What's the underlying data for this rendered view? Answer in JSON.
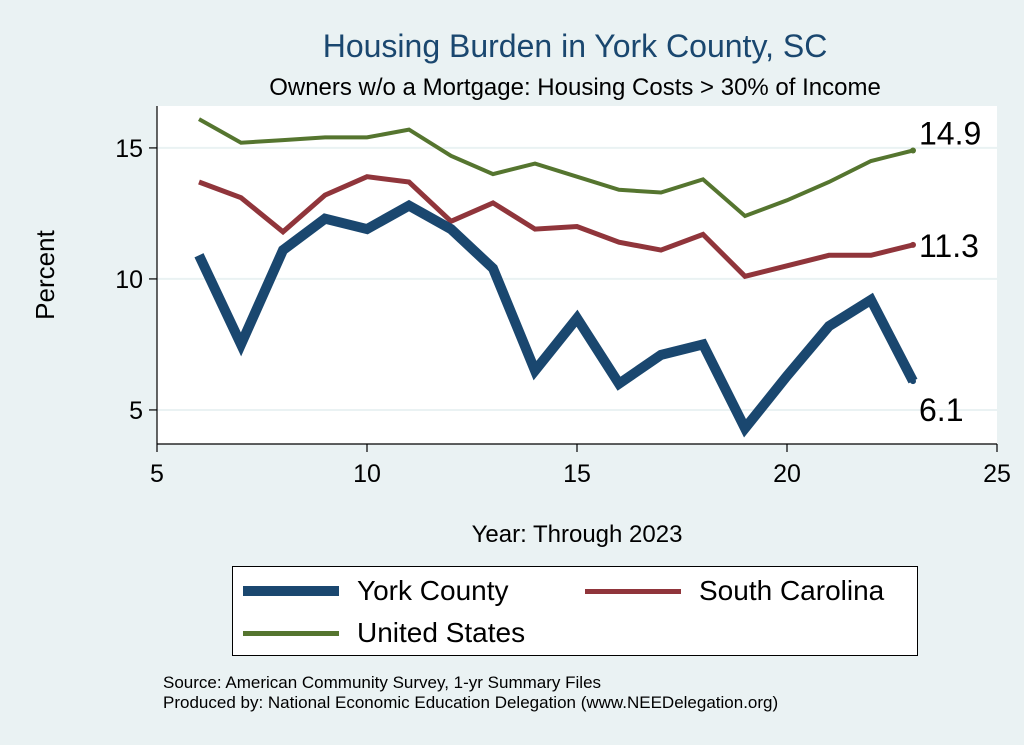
{
  "title": "Housing Burden in York County, SC",
  "subtitle": "Owners w/o a Mortgage: Housing Costs > 30% of Income",
  "chart_data": {
    "type": "line",
    "xlabel": "Year: Through 2023",
    "ylabel": "Percent",
    "xlim": [
      5,
      25
    ],
    "ylim": [
      3.7,
      16.6
    ],
    "xticks": [
      5,
      10,
      15,
      20,
      25
    ],
    "yticks": [
      5,
      10,
      15
    ],
    "grid": true,
    "x": [
      6,
      7,
      8,
      9,
      10,
      11,
      12,
      13,
      14,
      15,
      16,
      17,
      18,
      19,
      20,
      21,
      22,
      23
    ],
    "series": [
      {
        "name": "York County",
        "color": "#1a476f",
        "values": [
          10.9,
          7.5,
          11.1,
          12.3,
          11.9,
          12.8,
          11.9,
          10.4,
          6.5,
          8.5,
          6.0,
          7.1,
          7.5,
          4.3,
          6.3,
          8.2,
          9.2,
          6.1
        ],
        "end_label": "6.1"
      },
      {
        "name": "South Carolina",
        "color": "#90353b",
        "values": [
          13.7,
          13.1,
          11.8,
          13.2,
          13.9,
          13.7,
          12.2,
          12.9,
          11.9,
          12.0,
          11.4,
          11.1,
          11.7,
          10.1,
          10.5,
          10.9,
          10.9,
          11.3
        ],
        "end_label": "11.3"
      },
      {
        "name": "United States",
        "color": "#55752f",
        "values": [
          16.1,
          15.2,
          15.3,
          15.4,
          15.4,
          15.7,
          14.7,
          14.0,
          14.4,
          13.9,
          13.4,
          13.3,
          13.8,
          12.4,
          13.0,
          13.7,
          14.5,
          14.9
        ],
        "end_label": "14.9"
      }
    ]
  },
  "legend": [
    {
      "label": "York County",
      "color": "#1a476f",
      "weight": "thick"
    },
    {
      "label": "South Carolina",
      "color": "#90353b",
      "weight": "medium"
    },
    {
      "label": "United States",
      "color": "#55752f",
      "weight": "medium"
    }
  ],
  "source": {
    "line1": "Source: American Community Survey, 1-yr Summary Files",
    "line2": "Produced by: National Economic Education Delegation (www.NEEDelegation.org)"
  }
}
